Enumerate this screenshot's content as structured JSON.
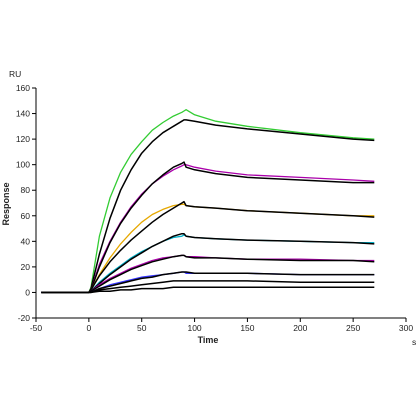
{
  "chart_data": {
    "type": "line",
    "title": "",
    "xlabel": "Time",
    "ylabel": "Response",
    "x_unit": "s",
    "y_unit": "RU",
    "xlim": [
      -50,
      300
    ],
    "ylim": [
      -20,
      160
    ],
    "x_ticks": [
      -50,
      0,
      50,
      100,
      150,
      200,
      250,
      300
    ],
    "y_ticks": [
      -20,
      0,
      20,
      40,
      60,
      80,
      100,
      120,
      140,
      160
    ],
    "x_tick_labels": [
      "-50",
      "0",
      "50",
      "100",
      "150",
      "200",
      "250",
      "300"
    ],
    "y_tick_labels": [
      "-20",
      "0",
      "20",
      "40",
      "60",
      "80",
      "100",
      "120",
      "140",
      "160"
    ],
    "grid": false,
    "series": [
      {
        "color": "#33cc33",
        "x": [
          -45,
          0,
          2,
          10,
          20,
          30,
          40,
          50,
          60,
          70,
          80,
          88,
          90,
          92,
          100,
          120,
          150,
          200,
          250,
          270
        ],
        "y": [
          0,
          0,
          4,
          44,
          74,
          94,
          108,
          118,
          127,
          133,
          138,
          141,
          142,
          143,
          139,
          134,
          130,
          125,
          121,
          120
        ]
      },
      {
        "color": "#000000",
        "x": [
          -45,
          0,
          2,
          10,
          20,
          30,
          40,
          50,
          60,
          70,
          80,
          88,
          90,
          92,
          100,
          120,
          150,
          200,
          250,
          270
        ],
        "y": [
          0,
          0,
          3,
          30,
          58,
          80,
          96,
          109,
          118,
          125,
          130,
          134,
          135,
          135,
          134,
          131,
          128,
          124,
          120,
          119
        ]
      },
      {
        "color": "#aa00aa",
        "x": [
          -45,
          0,
          2,
          10,
          20,
          30,
          40,
          50,
          60,
          70,
          80,
          88,
          90,
          92,
          100,
          120,
          150,
          200,
          250,
          270
        ],
        "y": [
          0,
          0,
          2,
          22,
          40,
          55,
          67,
          77,
          85,
          91,
          96,
          99,
          100,
          100,
          98,
          95,
          92,
          90,
          88,
          87
        ]
      },
      {
        "color": "#000000",
        "x": [
          -45,
          0,
          2,
          10,
          20,
          30,
          40,
          50,
          60,
          70,
          80,
          88,
          90,
          92,
          100,
          120,
          150,
          200,
          250,
          270
        ],
        "y": [
          0,
          0,
          2,
          20,
          39,
          54,
          66,
          76,
          85,
          92,
          98,
          101,
          102,
          98,
          96,
          93,
          90,
          88,
          86,
          86
        ]
      },
      {
        "color": "#e6a800",
        "x": [
          -45,
          0,
          2,
          10,
          20,
          30,
          40,
          50,
          60,
          70,
          80,
          88,
          90,
          92,
          100,
          120,
          150,
          200,
          250,
          270
        ],
        "y": [
          0,
          0,
          2,
          14,
          27,
          38,
          47,
          55,
          61,
          65,
          68,
          69,
          69,
          68,
          67,
          66,
          64,
          62,
          60,
          60
        ]
      },
      {
        "color": "#000000",
        "x": [
          -45,
          0,
          2,
          10,
          20,
          30,
          40,
          50,
          60,
          70,
          80,
          88,
          90,
          92,
          100,
          120,
          150,
          200,
          250,
          270
        ],
        "y": [
          0,
          0,
          2,
          13,
          24,
          33,
          41,
          48,
          55,
          61,
          66,
          70,
          71,
          68,
          67,
          66,
          64,
          62,
          60,
          59
        ]
      },
      {
        "color": "#00b0c8",
        "x": [
          -45,
          0,
          2,
          10,
          20,
          30,
          40,
          50,
          60,
          70,
          80,
          88,
          90,
          92,
          100,
          120,
          150,
          200,
          250,
          270
        ],
        "y": [
          0,
          0,
          1,
          8,
          15,
          21,
          27,
          32,
          36,
          40,
          43,
          44,
          45,
          44,
          43,
          42,
          41,
          40,
          39,
          39
        ]
      },
      {
        "color": "#000000",
        "x": [
          -45,
          0,
          2,
          10,
          20,
          30,
          40,
          50,
          60,
          70,
          80,
          88,
          90,
          92,
          100,
          120,
          150,
          200,
          250,
          270
        ],
        "y": [
          0,
          0,
          1,
          7,
          14,
          20,
          26,
          31,
          36,
          40,
          44,
          46,
          46,
          44,
          43,
          42,
          41,
          40,
          39,
          38
        ]
      },
      {
        "color": "#aa00aa",
        "x": [
          -45,
          0,
          2,
          10,
          20,
          30,
          40,
          50,
          60,
          70,
          80,
          88,
          90,
          92,
          100,
          120,
          150,
          200,
          250,
          270
        ],
        "y": [
          0,
          0,
          1,
          6,
          11,
          15,
          19,
          22,
          25,
          27,
          28,
          29,
          29,
          28,
          28,
          27,
          26,
          26,
          25,
          25
        ]
      },
      {
        "color": "#000000",
        "x": [
          -45,
          0,
          2,
          10,
          20,
          30,
          40,
          50,
          60,
          70,
          80,
          88,
          90,
          92,
          100,
          120,
          150,
          200,
          250,
          270
        ],
        "y": [
          0,
          0,
          1,
          5,
          10,
          14,
          18,
          21,
          24,
          26,
          28,
          29,
          29,
          28,
          27,
          27,
          26,
          25,
          25,
          24
        ]
      },
      {
        "color": "#3333ff",
        "x": [
          -45,
          0,
          2,
          10,
          20,
          30,
          40,
          50,
          60,
          70,
          80,
          88,
          90,
          92,
          100,
          120,
          150,
          200,
          250,
          270
        ],
        "y": [
          0,
          0,
          0,
          3,
          6,
          8,
          10,
          12,
          13,
          14,
          15,
          16,
          16,
          15,
          15,
          15,
          15,
          14,
          14,
          14
        ]
      },
      {
        "color": "#000000",
        "x": [
          -45,
          0,
          2,
          10,
          20,
          30,
          40,
          50,
          60,
          70,
          80,
          88,
          90,
          92,
          100,
          120,
          150,
          200,
          250,
          270
        ],
        "y": [
          0,
          0,
          0,
          3,
          5,
          7,
          9,
          11,
          12,
          14,
          15,
          16,
          16,
          16,
          15,
          15,
          15,
          14,
          14,
          14
        ]
      },
      {
        "color": "#000000",
        "x": [
          -45,
          0,
          2,
          10,
          20,
          30,
          40,
          50,
          60,
          70,
          80,
          88,
          90,
          92,
          100,
          120,
          150,
          200,
          250,
          270
        ],
        "y": [
          0,
          0,
          0,
          2,
          3,
          4,
          5,
          6,
          7,
          8,
          9,
          9,
          9,
          9,
          9,
          9,
          9,
          8,
          8,
          8
        ]
      },
      {
        "color": "#000000",
        "x": [
          -45,
          0,
          2,
          10,
          20,
          30,
          40,
          50,
          60,
          70,
          80,
          88,
          90,
          92,
          100,
          120,
          150,
          200,
          250,
          270
        ],
        "y": [
          0,
          0,
          0,
          1,
          1,
          2,
          2,
          3,
          3,
          3,
          4,
          4,
          4,
          4,
          4,
          4,
          4,
          4,
          4,
          4
        ]
      }
    ]
  }
}
